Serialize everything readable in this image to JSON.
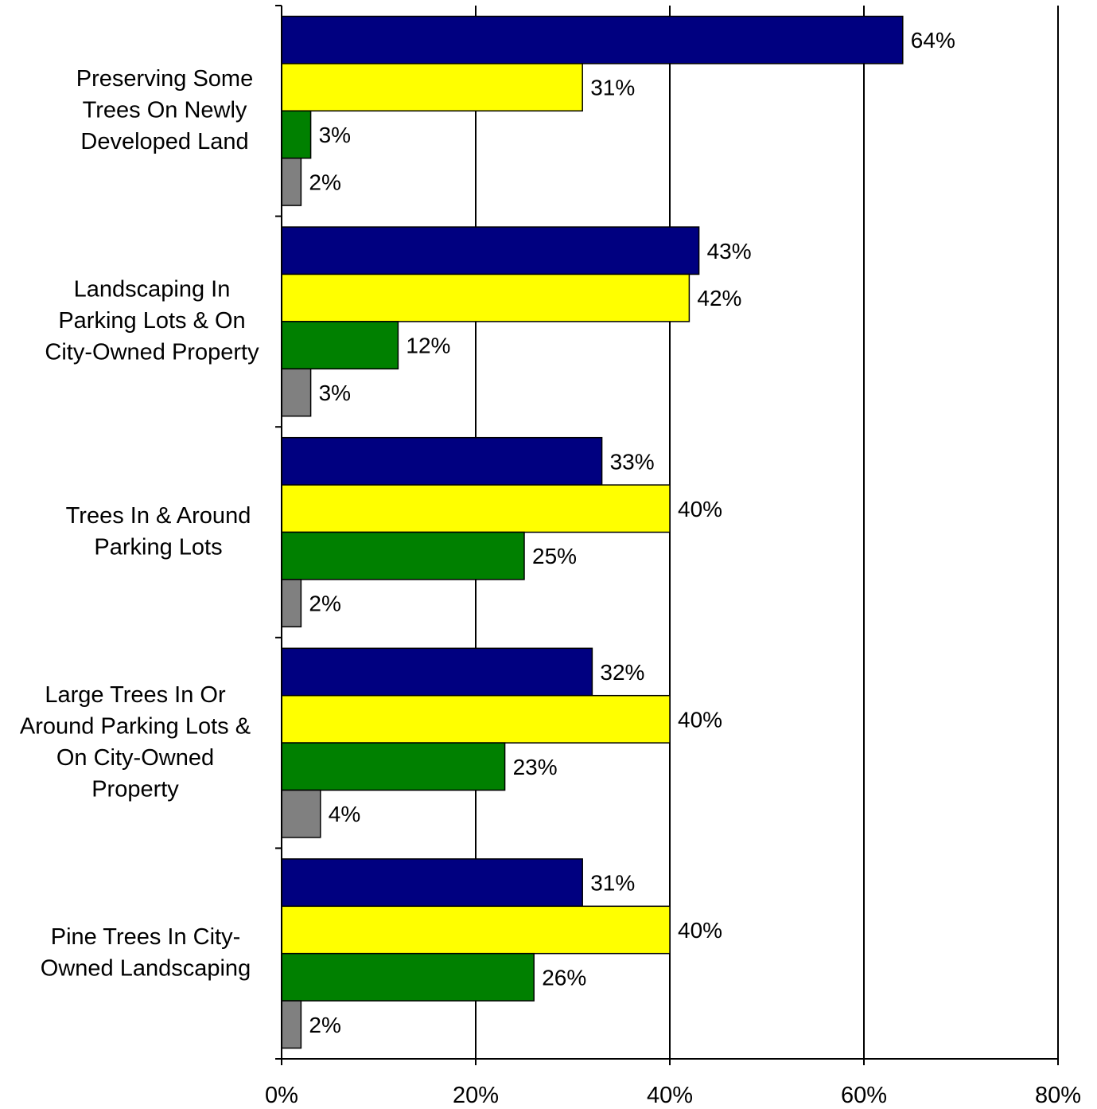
{
  "chart_data": {
    "type": "bar",
    "orientation": "horizontal",
    "categories": [
      "Preserving Some Trees On Newly Developed Land",
      "Landscaping In Parking Lots & On City-Owned Property",
      "Trees In & Around Parking Lots",
      "Large Trees In Or Around Parking Lots & On City-Owned Property",
      "Pine Trees In City-Owned Landscaping"
    ],
    "category_lines": [
      [
        "Preserving Some",
        "Trees On Newly",
        "Developed Land"
      ],
      [
        "Landscaping In",
        "Parking Lots & On",
        "City-Owned Property"
      ],
      [
        "Trees In & Around",
        "Parking Lots"
      ],
      [
        "Large Trees In Or",
        "Around Parking Lots &",
        "On City-Owned",
        "Property"
      ],
      [
        "Pine Trees In City-",
        "Owned Landscaping"
      ]
    ],
    "series": [
      {
        "values": [
          64,
          43,
          33,
          32,
          31
        ],
        "color": "#000080"
      },
      {
        "values": [
          31,
          42,
          40,
          40,
          40
        ],
        "color": "#ffff00"
      },
      {
        "values": [
          3,
          12,
          25,
          23,
          26
        ],
        "color": "#008000"
      },
      {
        "values": [
          2,
          3,
          2,
          4,
          2
        ],
        "color": "#808080"
      }
    ],
    "data_labels": [
      [
        "64%",
        "31%",
        "3%",
        "2%"
      ],
      [
        "43%",
        "42%",
        "12%",
        "3%"
      ],
      [
        "33%",
        "40%",
        "25%",
        "2%"
      ],
      [
        "32%",
        "40%",
        "23%",
        "4%"
      ],
      [
        "31%",
        "40%",
        "26%",
        "2%"
      ]
    ],
    "x_ticks": [
      0,
      20,
      40,
      60,
      80
    ],
    "x_tick_labels": [
      "0%",
      "20%",
      "40%",
      "60%",
      "80%"
    ],
    "xlim": [
      0,
      80
    ],
    "grid": true,
    "legend": "none",
    "title": "",
    "xlabel": "",
    "ylabel": ""
  }
}
